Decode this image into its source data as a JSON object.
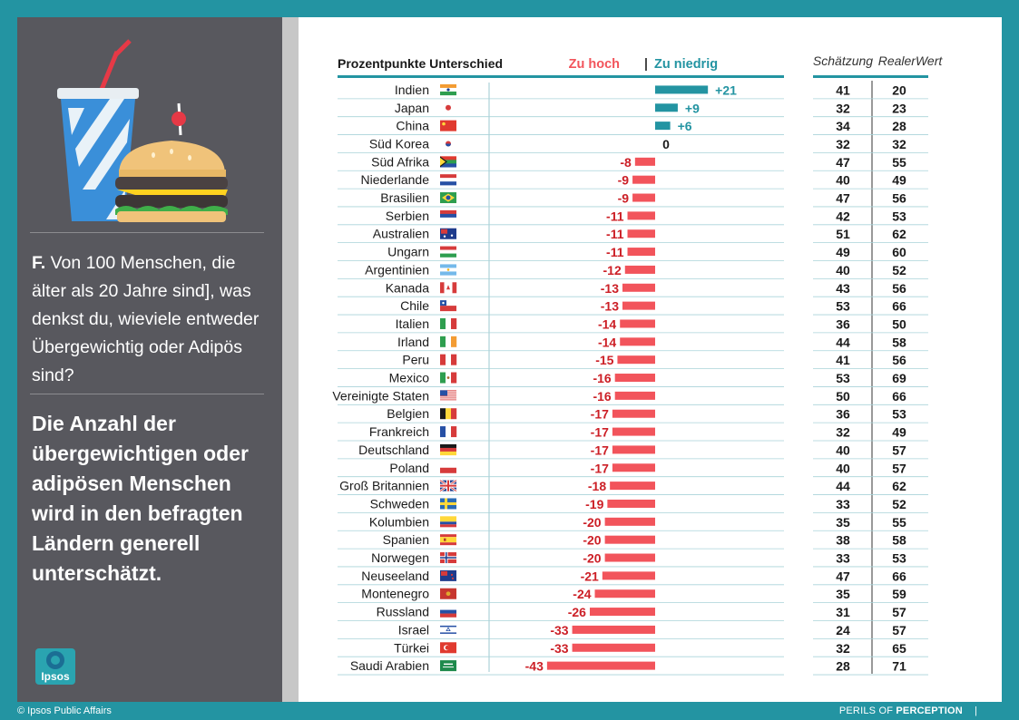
{
  "question": {
    "prefix": "F.",
    "text": "Von 100 Menschen, die älter als 20 Jahre sind], was denkst du, wieviele entweder Übergewichtig oder Adipös sind?"
  },
  "finding": "Die Anzahl der übergewichtigen oder adipösen Menschen wird in den befragten Ländern generell unterschätzt.",
  "logo_text": "Ipsos",
  "footer": {
    "copyright": "© Ipsos Public Affairs",
    "brand_prefix": "PERILS OF",
    "brand_bold": "PERCEPTION",
    "brand_suffix": "|"
  },
  "colors": {
    "teal": "#2394a2",
    "red": "#f2545b",
    "dark_red": "#cc1f26",
    "panel_gray": "#58585e"
  },
  "chart_data": {
    "type": "bar",
    "title": "Prozentpunkte Unterschied",
    "legend_high": "Zu hoch",
    "legend_separator": "|",
    "legend_low": "Zu niedrig",
    "col_estimate": "Schätzung",
    "col_real": "RealerWert",
    "categories": [
      "Indien",
      "Japan",
      "China",
      "Süd Korea",
      "Süd Afrika",
      "Niederlande",
      "Brasilien",
      "Serbien",
      "Australien",
      "Ungarn",
      "Argentinien",
      "Kanada",
      "Chile",
      "Italien",
      "Irland",
      "Peru",
      "Mexico",
      "Vereinigte Staten",
      "Belgien",
      "Frankreich",
      "Deutschland",
      "Poland",
      "Groß Britannien",
      "Schweden",
      "Kolumbien",
      "Spanien",
      "Norwegen",
      "Neuseeland",
      "Montenegro",
      "Russland",
      "Israel",
      "Türkei",
      "Saudi Arabien"
    ],
    "labels": [
      "+21",
      "+9",
      "+6",
      "0",
      "-8",
      "-9",
      "-9",
      "-11",
      "-11",
      "-11",
      "-12",
      "-13",
      "-13",
      "-14",
      "-14",
      "-15",
      "-16",
      "-16",
      "-17",
      "-17",
      "-17",
      "-17",
      "-18",
      "-19",
      "-20",
      "-20",
      "-20",
      "-21",
      "-24",
      "-26",
      "-33",
      "-33",
      "-43"
    ],
    "values": [
      21,
      9,
      6,
      0,
      -8,
      -9,
      -9,
      -11,
      -11,
      -11,
      -12,
      -13,
      -13,
      -14,
      -14,
      -15,
      -16,
      -16,
      -17,
      -17,
      -17,
      -17,
      -18,
      -19,
      -20,
      -20,
      -20,
      -21,
      -24,
      -26,
      -33,
      -33,
      -43
    ],
    "estimate": [
      "41",
      "32",
      "34",
      "32",
      "47",
      "40",
      "47",
      "42",
      "51",
      "49",
      "40",
      "43",
      "53",
      "36",
      "44",
      "41",
      "53",
      "50",
      "36",
      "32",
      "40",
      "40",
      "44",
      "33",
      "35",
      "38",
      "33",
      "47",
      "35",
      "31",
      "24",
      "32",
      "28"
    ],
    "real": [
      "20",
      "23",
      "28",
      "32",
      "55",
      "49",
      "56",
      "53",
      "62",
      "60",
      "52",
      "56",
      "66",
      "50",
      "58",
      "56",
      "69",
      "66",
      "53",
      "49",
      "57",
      "57",
      "62",
      "52",
      "55",
      "58",
      "53",
      "66",
      "59",
      "57",
      "57",
      "65",
      "71"
    ],
    "flags": [
      "in",
      "jp",
      "cn",
      "kr",
      "za",
      "nl",
      "br",
      "rs",
      "au",
      "hu",
      "ar",
      "ca",
      "cl",
      "it",
      "ie",
      "pe",
      "mx",
      "us",
      "be",
      "fr",
      "de",
      "pl",
      "gb",
      "se",
      "co",
      "es",
      "no",
      "nz",
      "me",
      "ru",
      "il",
      "tr",
      "sa"
    ]
  }
}
